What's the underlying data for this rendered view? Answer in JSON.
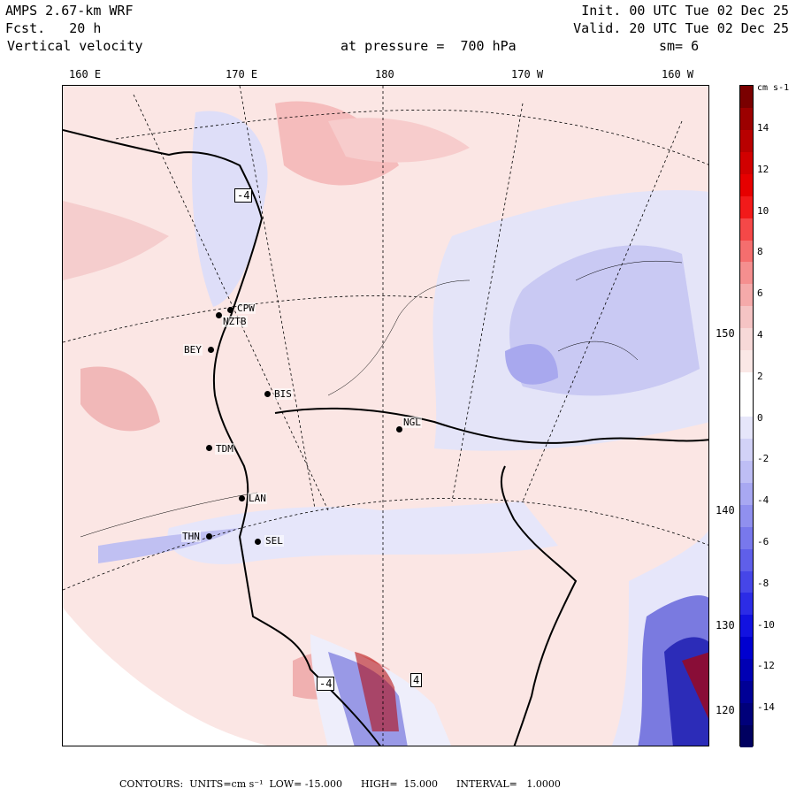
{
  "header": {
    "model": "AMPS 2.67-km WRF",
    "forecast": "Fcst.   20 h",
    "field": "Vertical velocity",
    "pressure": "at pressure =  700 hPa",
    "init": "Init. 00 UTC Tue 02 Dec 25",
    "valid": "Valid. 20 UTC Tue 02 Dec 25",
    "smooth": "sm= 6"
  },
  "longitude_labels": [
    "160 E",
    "170 E",
    "180",
    "170 W",
    "160 W"
  ],
  "latitude_labels": [
    "150 W",
    "140 W",
    "130 W",
    "120 W"
  ],
  "stations": [
    {
      "id": "CPW"
    },
    {
      "id": "NZTB"
    },
    {
      "id": "BEY"
    },
    {
      "id": "BIS"
    },
    {
      "id": "NGL"
    },
    {
      "id": "TDM"
    },
    {
      "id": "LAN"
    },
    {
      "id": "THN"
    },
    {
      "id": "SEL"
    }
  ],
  "contour_marks": [
    "-4",
    "-4",
    "4"
  ],
  "colorbar": {
    "units": "cm s-1",
    "tick_labels": [
      "14",
      "12",
      "10",
      "8",
      "6",
      "4",
      "2",
      "0",
      "-2",
      "-4",
      "-6",
      "-8",
      "-10",
      "-12",
      "-14"
    ],
    "colors": [
      "#7a0000",
      "#9c0000",
      "#b80000",
      "#d10000",
      "#e60000",
      "#f21a1a",
      "#f54848",
      "#f56e6e",
      "#f58f8f",
      "#f5aaaa",
      "#f5c4c4",
      "#f7d9d8",
      "#fae8e6",
      "#ffffff",
      "#ffffff",
      "#e6e6fa",
      "#d2d2f7",
      "#bebef5",
      "#a8a8f2",
      "#9090ef",
      "#7878ec",
      "#5f5fea",
      "#4646e8",
      "#2c2ce6",
      "#1212e0",
      "#0000d0",
      "#0000b4",
      "#000096",
      "#00007a",
      "#000060"
    ]
  },
  "footer": "CONTOURS:  UNITS=cm s⁻¹  LOW= -15.000      HIGH=  15.000      INTERVAL=   1.0000"
}
